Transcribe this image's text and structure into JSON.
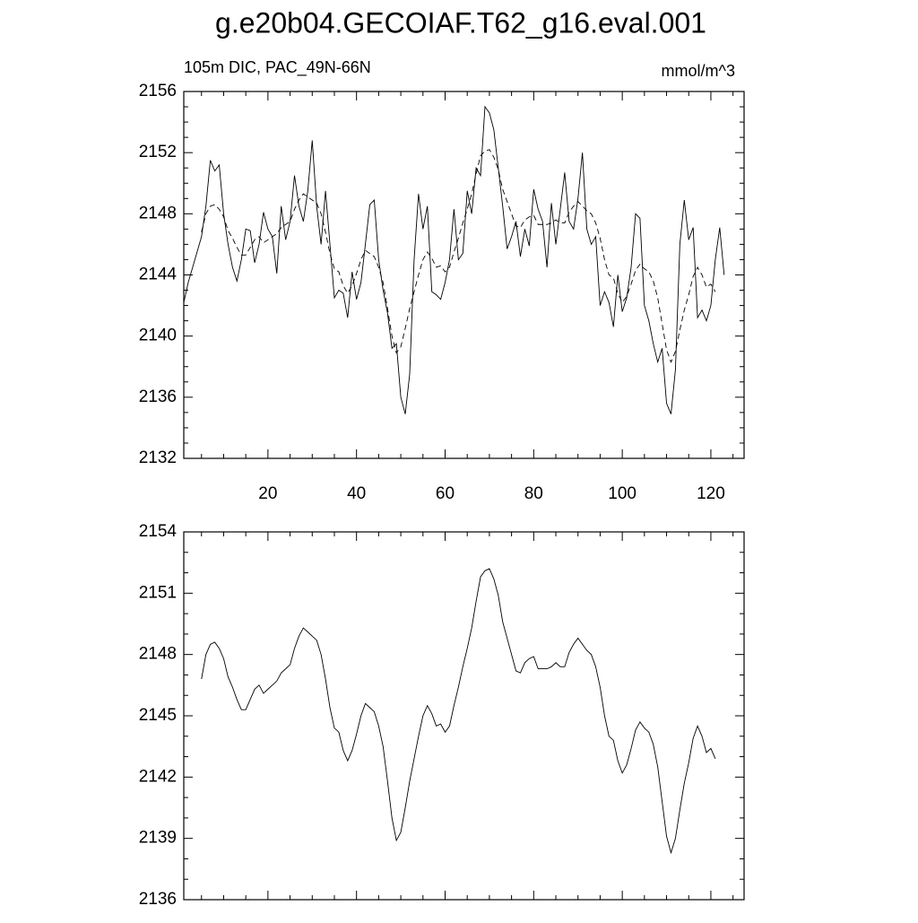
{
  "chart_data": [
    {
      "type": "line",
      "title": "g.e20b04.GECOIAF.T62_g16.eval.001",
      "subtitle": "105m DIC, PAC_49N-66N",
      "units": "mmol/m^3",
      "x": [
        1,
        2,
        3,
        4,
        5,
        6,
        7,
        8,
        9,
        10,
        11,
        12,
        13,
        14,
        15,
        16,
        17,
        18,
        19,
        20,
        21,
        22,
        23,
        24,
        25,
        26,
        27,
        28,
        29,
        30,
        31,
        32,
        33,
        34,
        35,
        36,
        37,
        38,
        39,
        40,
        41,
        42,
        43,
        44,
        45,
        46,
        47,
        48,
        49,
        50,
        51,
        52,
        53,
        54,
        55,
        56,
        57,
        58,
        59,
        60,
        61,
        62,
        63,
        64,
        65,
        66,
        67,
        68,
        69,
        70,
        71,
        72,
        73,
        74,
        75,
        76,
        77,
        78,
        79,
        80,
        81,
        82,
        83,
        84,
        85,
        86,
        87,
        88,
        89,
        90,
        91,
        92,
        93,
        94,
        95,
        96,
        97,
        98,
        99,
        100,
        101,
        102,
        103,
        104,
        105,
        106,
        107,
        108,
        109,
        110,
        111,
        112,
        113,
        114,
        115,
        116,
        117,
        118,
        119,
        120,
        121,
        122,
        123
      ],
      "series": [
        {
          "color": "#000000",
          "style": "solid",
          "values": [
            2142.2,
            2143.5,
            2144.5,
            2145.5,
            2146.5,
            2148.5,
            2151.5,
            2150.8,
            2151.2,
            2148,
            2146,
            2144.5,
            2143.6,
            2145,
            2147,
            2146.9,
            2144.8,
            2146,
            2148.1,
            2147,
            2146.5,
            2144.1,
            2148.5,
            2146.3,
            2147.5,
            2150.5,
            2148.5,
            2147.5,
            2149.5,
            2152.8,
            2148.5,
            2146,
            2149.5,
            2146,
            2142.5,
            2143,
            2142.8,
            2141.2,
            2144.2,
            2142.4,
            2143.5,
            2146,
            2148.6,
            2148.9,
            2145,
            2143,
            2141.5,
            2139.2,
            2139.5,
            2136,
            2134.9,
            2137.5,
            2145,
            2149.3,
            2147,
            2148.5,
            2142.9,
            2142.7,
            2142.4,
            2143.5,
            2145,
            2148.3,
            2145,
            2145.4,
            2149.5,
            2148,
            2151,
            2150.5,
            2155,
            2154.6,
            2153.5,
            2151,
            2148.5,
            2145.7,
            2146.5,
            2147.5,
            2145.2,
            2147,
            2145.9,
            2149.6,
            2148.3,
            2147.5,
            2144.5,
            2148.7,
            2146,
            2148.3,
            2150.7,
            2147.5,
            2147,
            2149,
            2152,
            2147,
            2146,
            2146.5,
            2142,
            2142.9,
            2142.2,
            2140.6,
            2144,
            2141.6,
            2142.5,
            2144.5,
            2148,
            2147.7,
            2142,
            2141,
            2139.5,
            2138.3,
            2139.2,
            2135.6,
            2134.9,
            2137.8,
            2146,
            2148.9,
            2146.3,
            2147.1,
            2141.2,
            2141.7,
            2141,
            2142,
            2145,
            2147.1,
            2144
          ]
        },
        {
          "color": "#000000",
          "style": "dashed",
          "values": [
            null,
            null,
            null,
            null,
            2146.8,
            2148,
            2148.5,
            2148.6,
            2148.3,
            2147.8,
            2146.9,
            2146.4,
            2145.8,
            2145.3,
            2145.3,
            2145.8,
            2146.3,
            2146.5,
            2146.1,
            2146.3,
            2146.5,
            2146.7,
            2147.1,
            2147.3,
            2147.5,
            2148.3,
            2148.9,
            2149.3,
            2149.1,
            2148.9,
            2148.7,
            2148,
            2146.8,
            2145.4,
            2144.4,
            2144.2,
            2143.3,
            2142.8,
            2143.3,
            2144.1,
            2145,
            2145.6,
            2145.4,
            2145.2,
            2144.5,
            2143.5,
            2141.8,
            2140,
            2138.9,
            2139.3,
            2140.5,
            2141.8,
            2142.9,
            2144,
            2145,
            2145.5,
            2145.1,
            2144.5,
            2144.6,
            2144.2,
            2144.5,
            2145.5,
            2146.4,
            2147.4,
            2148.3,
            2149.3,
            2150.6,
            2151.8,
            2152.1,
            2152.2,
            2151.7,
            2150.9,
            2149.6,
            2148.8,
            2148,
            2147.2,
            2147.1,
            2147.6,
            2147.8,
            2147.9,
            2147.3,
            2147.3,
            2147.3,
            2147.4,
            2147.6,
            2147.4,
            2147.4,
            2148.1,
            2148.5,
            2148.8,
            2148.5,
            2148.2,
            2148,
            2147.4,
            2146.4,
            2145,
            2144,
            2143.8,
            2142.8,
            2142.2,
            2142.6,
            2143.4,
            2144.3,
            2144.7,
            2144.4,
            2144.2,
            2143.6,
            2142.5,
            2140.8,
            2139.1,
            2138.3,
            2139,
            2140.4,
            2141.7,
            2142.7,
            2143.9,
            2144.5,
            2144,
            2143.2,
            2143.4,
            2142.9,
            null,
            null
          ]
        }
      ],
      "xlim": [
        1,
        127.5
      ],
      "xticks": [
        20,
        40,
        60,
        80,
        100,
        120
      ],
      "xtick_labels": true,
      "ylim": [
        2132,
        2156
      ],
      "yticks": [
        2132,
        2136,
        2140,
        2144,
        2148,
        2152,
        2156
      ],
      "minor_divisions": {
        "x": 4,
        "y": 4
      }
    },
    {
      "type": "line",
      "x": [
        1,
        2,
        3,
        4,
        5,
        6,
        7,
        8,
        9,
        10,
        11,
        12,
        13,
        14,
        15,
        16,
        17,
        18,
        19,
        20,
        21,
        22,
        23,
        24,
        25,
        26,
        27,
        28,
        29,
        30,
        31,
        32,
        33,
        34,
        35,
        36,
        37,
        38,
        39,
        40,
        41,
        42,
        43,
        44,
        45,
        46,
        47,
        48,
        49,
        50,
        51,
        52,
        53,
        54,
        55,
        56,
        57,
        58,
        59,
        60,
        61,
        62,
        63,
        64,
        65,
        66,
        67,
        68,
        69,
        70,
        71,
        72,
        73,
        74,
        75,
        76,
        77,
        78,
        79,
        80,
        81,
        82,
        83,
        84,
        85,
        86,
        87,
        88,
        89,
        90,
        91,
        92,
        93,
        94,
        95,
        96,
        97,
        98,
        99,
        100,
        101,
        102,
        103,
        104,
        105,
        106,
        107,
        108,
        109,
        110,
        111,
        112,
        113,
        114,
        115,
        116,
        117,
        118,
        119,
        120,
        121,
        122,
        123
      ],
      "series": [
        {
          "color": "#000000",
          "style": "solid",
          "values": [
            null,
            null,
            null,
            null,
            2146.8,
            2148,
            2148.5,
            2148.6,
            2148.3,
            2147.8,
            2146.9,
            2146.4,
            2145.8,
            2145.3,
            2145.3,
            2145.8,
            2146.3,
            2146.5,
            2146.1,
            2146.3,
            2146.5,
            2146.7,
            2147.1,
            2147.3,
            2147.5,
            2148.3,
            2148.9,
            2149.3,
            2149.1,
            2148.9,
            2148.7,
            2148,
            2146.8,
            2145.4,
            2144.4,
            2144.2,
            2143.3,
            2142.8,
            2143.3,
            2144.1,
            2145,
            2145.6,
            2145.4,
            2145.2,
            2144.5,
            2143.5,
            2141.8,
            2140,
            2138.9,
            2139.3,
            2140.5,
            2141.8,
            2142.9,
            2144,
            2145,
            2145.5,
            2145.1,
            2144.5,
            2144.6,
            2144.2,
            2144.5,
            2145.5,
            2146.4,
            2147.4,
            2148.3,
            2149.3,
            2150.6,
            2151.8,
            2152.1,
            2152.2,
            2151.7,
            2150.9,
            2149.6,
            2148.8,
            2148,
            2147.2,
            2147.1,
            2147.6,
            2147.8,
            2147.9,
            2147.3,
            2147.3,
            2147.3,
            2147.4,
            2147.6,
            2147.4,
            2147.4,
            2148.1,
            2148.5,
            2148.8,
            2148.5,
            2148.2,
            2148,
            2147.4,
            2146.4,
            2145,
            2144,
            2143.8,
            2142.8,
            2142.2,
            2142.6,
            2143.4,
            2144.3,
            2144.7,
            2144.4,
            2144.2,
            2143.6,
            2142.5,
            2140.8,
            2139.1,
            2138.3,
            2139,
            2140.4,
            2141.7,
            2142.7,
            2143.9,
            2144.5,
            2144,
            2143.2,
            2143.4,
            2142.9,
            null,
            null
          ]
        }
      ],
      "xlim": [
        1,
        127.5
      ],
      "xticks": [
        20,
        40,
        60,
        80,
        100,
        120
      ],
      "xtick_labels": false,
      "ylim": [
        2136,
        2154
      ],
      "yticks": [
        2136,
        2139,
        2142,
        2145,
        2148,
        2151,
        2154
      ],
      "minor_divisions": {
        "x": 4,
        "y": 3
      }
    }
  ]
}
